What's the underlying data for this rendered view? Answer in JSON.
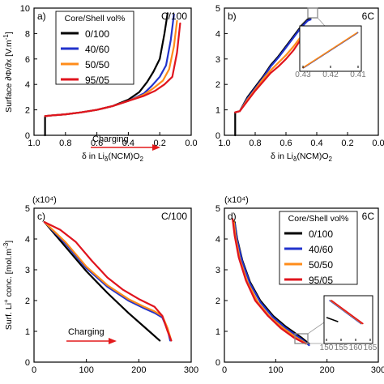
{
  "figure": {
    "colors": {
      "0/100": "#000000",
      "40/60": "#2233cc",
      "50/50": "#ff8c1a",
      "95/05": "#e0141e",
      "arrow": "#e31a1c"
    }
  },
  "chart_data": [
    {
      "panel": "a)",
      "type": "line",
      "rate_label": "C/100",
      "xlabel": "δ in Liδ(NCM)O2",
      "ylabel": "Surface ∂Φ/∂x [V.m⁻¹]",
      "xlim": [
        1.0,
        0.0
      ],
      "ylim": [
        0,
        10
      ],
      "xticks": [
        "1.0",
        "0.8",
        "0.6",
        "0.4",
        "0.2",
        "0.0"
      ],
      "yticks": [
        "0",
        "2",
        "4",
        "6",
        "8",
        "10"
      ],
      "legend_title": "Core/Shell vol%",
      "legend_position": "top-left",
      "annotation": "Charging",
      "series": [
        {
          "name": "0/100",
          "color": "#000000",
          "x": [
            0.93,
            0.93,
            0.9,
            0.8,
            0.7,
            0.6,
            0.5,
            0.4,
            0.33,
            0.28,
            0.24,
            0.2,
            0.17,
            0.15
          ],
          "y": [
            0,
            1.5,
            1.55,
            1.65,
            1.8,
            2.0,
            2.3,
            2.8,
            3.4,
            4.2,
            5.0,
            6.0,
            8.0,
            9.6
          ]
        },
        {
          "name": "40/60",
          "color": "#2233cc",
          "x": [
            0.93,
            0.9,
            0.8,
            0.7,
            0.6,
            0.5,
            0.4,
            0.3,
            0.25,
            0.2,
            0.16,
            0.13,
            0.11
          ],
          "y": [
            1.5,
            1.55,
            1.65,
            1.8,
            2.0,
            2.3,
            2.7,
            3.3,
            3.9,
            4.6,
            5.5,
            7.5,
            9.5
          ]
        },
        {
          "name": "50/50",
          "color": "#ff8c1a",
          "x": [
            0.93,
            0.9,
            0.8,
            0.7,
            0.6,
            0.5,
            0.4,
            0.3,
            0.24,
            0.18,
            0.14,
            0.11,
            0.09
          ],
          "y": [
            1.5,
            1.55,
            1.65,
            1.8,
            2.0,
            2.3,
            2.7,
            3.2,
            3.7,
            4.3,
            5.2,
            7.0,
            9.0
          ]
        },
        {
          "name": "95/05",
          "color": "#e0141e",
          "x": [
            0.93,
            0.9,
            0.8,
            0.7,
            0.6,
            0.5,
            0.4,
            0.3,
            0.23,
            0.17,
            0.12,
            0.09,
            0.07
          ],
          "y": [
            1.5,
            1.55,
            1.65,
            1.8,
            2.0,
            2.3,
            2.7,
            3.1,
            3.5,
            4.0,
            4.6,
            6.5,
            8.8
          ]
        }
      ]
    },
    {
      "panel": "b)",
      "type": "line",
      "rate_label": "6C",
      "xlabel": "δ in Liδ(NCM)O2",
      "xlim": [
        1.0,
        0.0
      ],
      "ylim": [
        0,
        5
      ],
      "xticks": [
        "1.0",
        "0.8",
        "0.6",
        "0.4",
        "0.2",
        "0.0"
      ],
      "yticks": [
        "0",
        "1",
        "2",
        "3",
        "4",
        "5"
      ],
      "series": [
        {
          "name": "0/100",
          "color": "#000000",
          "x": [
            0.93,
            0.93,
            0.9,
            0.85,
            0.8,
            0.75,
            0.7,
            0.65,
            0.6,
            0.55,
            0.5,
            0.46,
            0.44
          ],
          "y": [
            0,
            0.9,
            0.95,
            1.5,
            1.9,
            2.3,
            2.75,
            3.1,
            3.5,
            3.9,
            4.3,
            4.55,
            4.6
          ]
        },
        {
          "name": "40/60",
          "color": "#2233cc",
          "x": [
            0.93,
            0.9,
            0.85,
            0.8,
            0.75,
            0.7,
            0.65,
            0.6,
            0.55,
            0.5,
            0.46,
            0.44
          ],
          "y": [
            0.9,
            0.95,
            1.45,
            1.85,
            2.25,
            2.7,
            3.05,
            3.45,
            3.85,
            4.25,
            4.5,
            4.55
          ]
        },
        {
          "name": "50/50",
          "color": "#ff8c1a",
          "x": [
            0.93,
            0.9,
            0.85,
            0.8,
            0.75,
            0.7,
            0.65,
            0.6,
            0.55,
            0.5,
            0.47
          ],
          "y": [
            0.9,
            0.95,
            1.4,
            1.8,
            2.2,
            2.55,
            2.85,
            3.15,
            3.5,
            3.9,
            4.2
          ]
        },
        {
          "name": "95/05",
          "color": "#e0141e",
          "x": [
            0.93,
            0.9,
            0.85,
            0.8,
            0.75,
            0.7,
            0.65,
            0.6,
            0.55,
            0.5,
            0.48
          ],
          "y": [
            0.9,
            0.95,
            1.35,
            1.75,
            2.1,
            2.45,
            2.7,
            3.0,
            3.35,
            3.8,
            4.05
          ]
        }
      ],
      "inset": {
        "xlim": [
          0.43,
          0.41
        ],
        "xticks": [
          "0.43",
          "0.42",
          "0.41"
        ],
        "series": [
          {
            "name": "0/100",
            "color": "#000000",
            "x": [
              0.43,
              0.41
            ],
            "y": [
              0.0,
              1.0
            ]
          },
          {
            "name": "40/60",
            "color": "#2233cc",
            "x": [
              0.43,
              0.41
            ],
            "y": [
              0.0,
              1.0
            ]
          },
          {
            "name": "50/50",
            "color": "#ff8c1a",
            "x": [
              0.4302,
              0.4102
            ],
            "y": [
              0.0,
              1.0
            ]
          }
        ]
      }
    },
    {
      "panel": "c)",
      "type": "line",
      "rate_label": "C/100",
      "multiplier": "(x10⁴)",
      "ylabel": "Surf. Li⁺ conc. [mol.m⁻³]",
      "xlim": [
        0,
        300
      ],
      "ylim": [
        0,
        5
      ],
      "xticks": [
        "0",
        "100",
        "200",
        "300"
      ],
      "yticks": [
        "0",
        "1",
        "2",
        "3",
        "4",
        "5"
      ],
      "annotation": "Charging",
      "series": [
        {
          "name": "0/100",
          "color": "#000000",
          "x": [
            20,
            60,
            100,
            140,
            180,
            220,
            240
          ],
          "y": [
            4.55,
            3.75,
            2.95,
            2.25,
            1.6,
            1.0,
            0.7
          ]
        },
        {
          "name": "40/60",
          "color": "#2233cc",
          "x": [
            20,
            60,
            100,
            140,
            180,
            210,
            230,
            245,
            255,
            260
          ],
          "y": [
            4.55,
            3.85,
            3.05,
            2.45,
            2.0,
            1.75,
            1.6,
            1.45,
            1.05,
            0.7
          ]
        },
        {
          "name": "50/50",
          "color": "#ff8c1a",
          "x": [
            20,
            60,
            100,
            140,
            180,
            210,
            230,
            245,
            255,
            262
          ],
          "y": [
            4.55,
            3.9,
            3.1,
            2.5,
            2.05,
            1.8,
            1.65,
            1.5,
            1.1,
            0.7
          ]
        },
        {
          "name": "95/05",
          "color": "#e0141e",
          "x": [
            20,
            50,
            80,
            110,
            140,
            170,
            200,
            230,
            245,
            255,
            262
          ],
          "y": [
            4.55,
            4.3,
            3.9,
            3.3,
            2.75,
            2.35,
            2.05,
            1.8,
            1.5,
            1.0,
            0.7
          ]
        }
      ]
    },
    {
      "panel": "d)",
      "type": "line",
      "rate_label": "6C",
      "multiplier": "(x10⁴)",
      "xlim": [
        0,
        300
      ],
      "ylim": [
        0,
        5
      ],
      "xticks": [
        "0",
        "100",
        "200",
        "300"
      ],
      "yticks": [
        "0",
        "1",
        "2",
        "3",
        "4",
        "5"
      ],
      "legend_title": "Core/Shell vol%",
      "legend_position": "top-right",
      "series": [
        {
          "name": "0/100",
          "color": "#000000",
          "x": [
            20,
            25,
            35,
            50,
            70,
            95,
            120,
            150,
            165
          ],
          "y": [
            4.55,
            4.0,
            3.3,
            2.6,
            2.0,
            1.5,
            1.15,
            0.8,
            0.6
          ]
        },
        {
          "name": "40/60",
          "color": "#2233cc",
          "x": [
            20,
            25,
            35,
            50,
            70,
            95,
            120,
            150,
            165
          ],
          "y": [
            4.5,
            3.95,
            3.25,
            2.55,
            1.95,
            1.45,
            1.1,
            0.75,
            0.55
          ]
        },
        {
          "name": "50/50",
          "color": "#ff8c1a",
          "x": [
            18,
            22,
            30,
            45,
            65,
            90,
            115,
            140,
            160
          ],
          "y": [
            4.6,
            4.05,
            3.35,
            2.6,
            1.95,
            1.45,
            1.1,
            0.8,
            0.6
          ]
        },
        {
          "name": "95/05",
          "color": "#e0141e",
          "x": [
            16,
            20,
            28,
            42,
            60,
            85,
            110,
            135,
            158
          ],
          "y": [
            4.65,
            4.1,
            3.4,
            2.65,
            2.0,
            1.5,
            1.1,
            0.8,
            0.6
          ]
        }
      ],
      "inset": {
        "xlim": [
          150,
          165
        ],
        "xticks": [
          "150",
          "155",
          "160",
          "165"
        ],
        "series": [
          {
            "name": "0/100",
            "color": "#000000",
            "x": [
              150,
              154
            ],
            "y": [
              0.55,
              0.45
            ]
          },
          {
            "name": "40/60",
            "color": "#2233cc",
            "x": [
              151,
              162
            ],
            "y": [
              0.95,
              0.4
            ]
          },
          {
            "name": "50/50",
            "color": "#ff8c1a",
            "x": [
              151.3,
              162.3
            ],
            "y": [
              0.95,
              0.4
            ]
          },
          {
            "name": "95/05",
            "color": "#e0141e",
            "x": [
              151.6,
              162.6
            ],
            "y": [
              0.95,
              0.4
            ]
          }
        ]
      }
    }
  ]
}
